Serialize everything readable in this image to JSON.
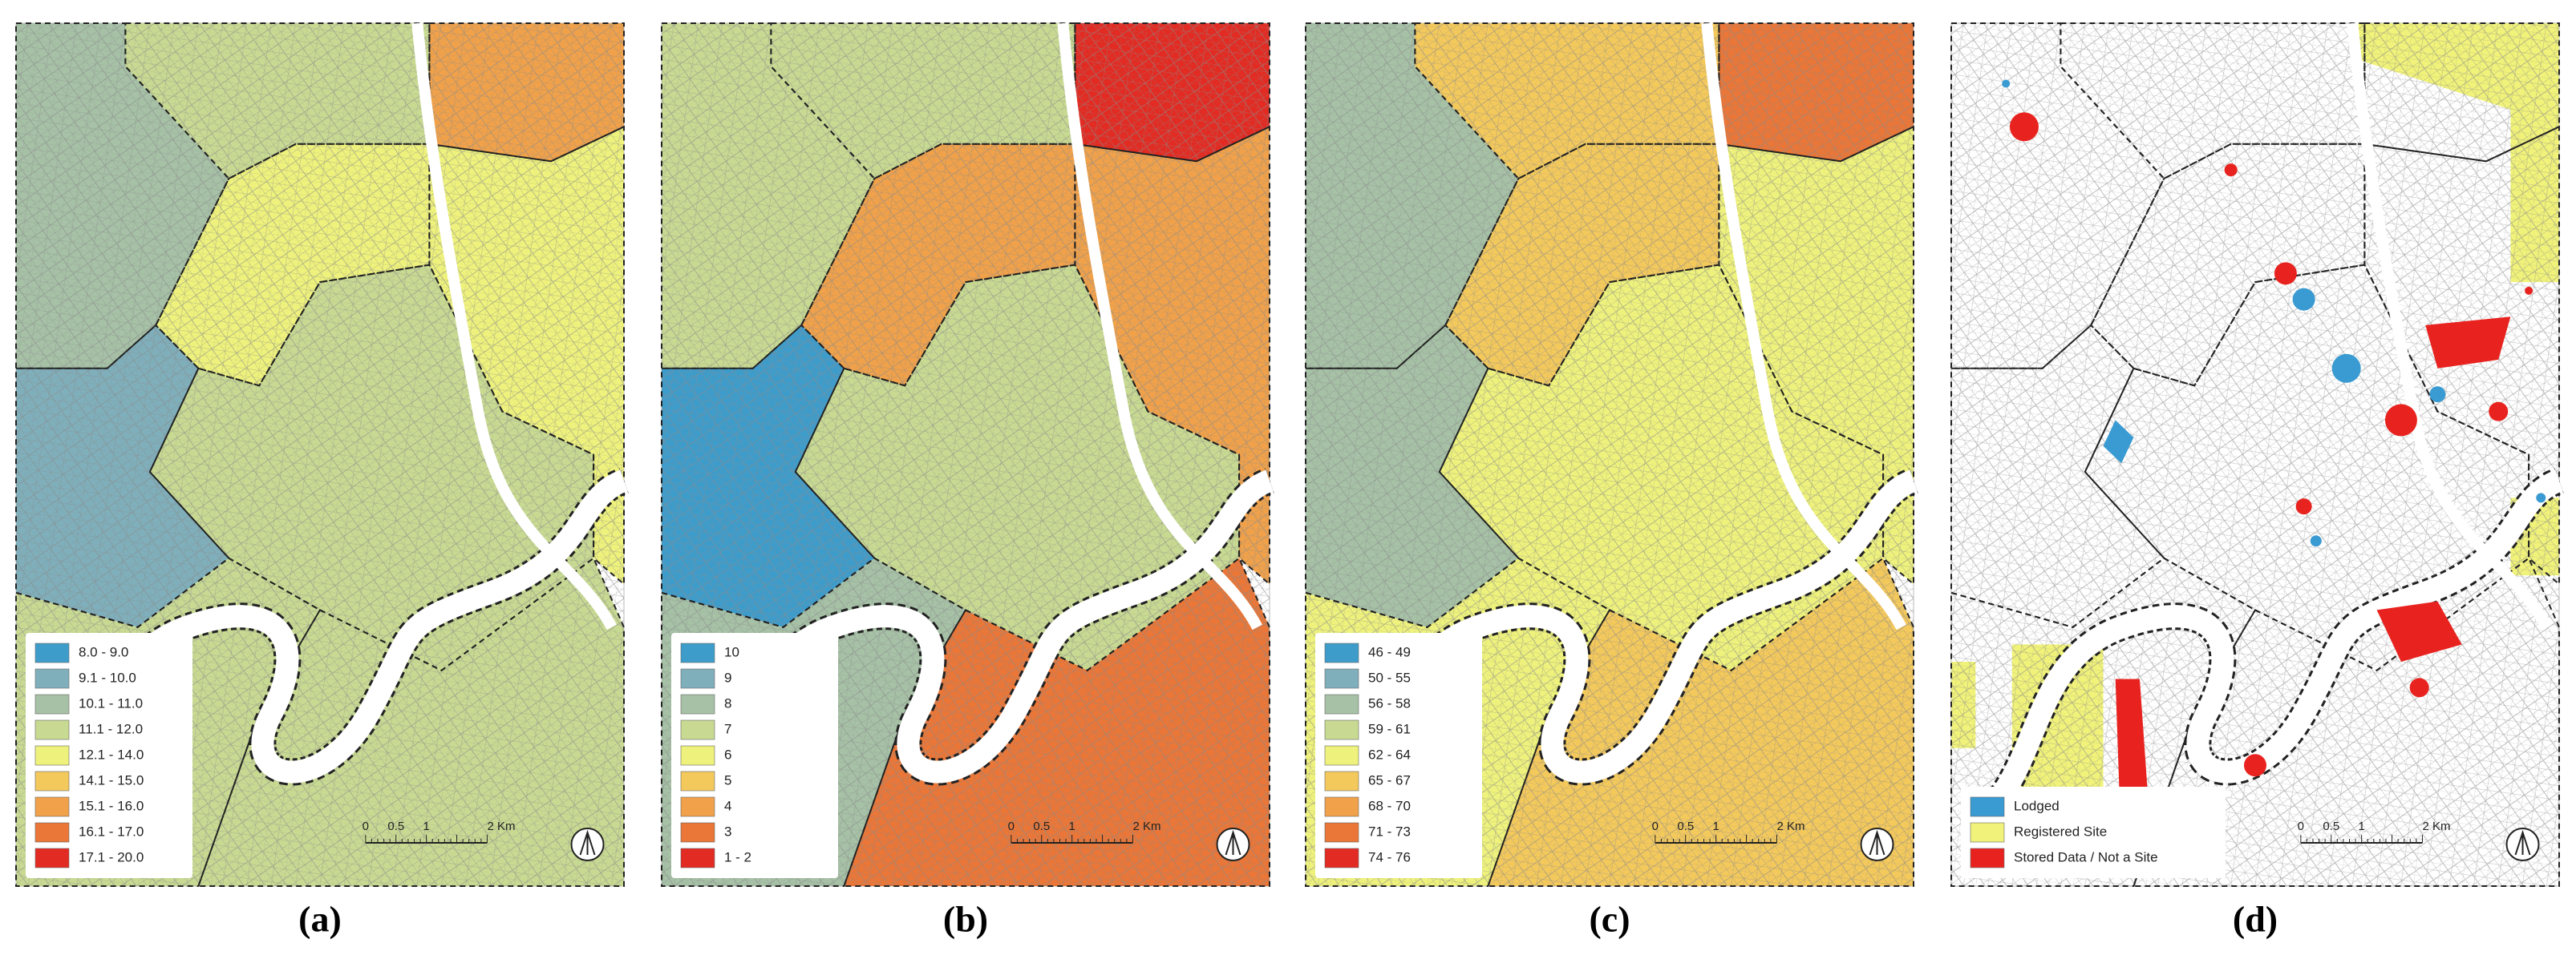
{
  "panels": [
    {
      "label": "(a)",
      "legend": [
        {
          "label": "8.0 - 9.0",
          "color": "#3e9ccb"
        },
        {
          "label": "9.1 - 10.0",
          "color": "#7fafbb"
        },
        {
          "label": "10.1 - 11.0",
          "color": "#a6c1a6"
        },
        {
          "label": "11.1 - 12.0",
          "color": "#c8da92"
        },
        {
          "label": "12.1 - 14.0",
          "color": "#eef27c"
        },
        {
          "label": "14.1 - 15.0",
          "color": "#f4c95c"
        },
        {
          "label": "15.1 - 16.0",
          "color": "#f0a14a"
        },
        {
          "label": "16.1 - 17.0",
          "color": "#ea7637"
        },
        {
          "label": "17.1 - 20.0",
          "color": "#e22b22"
        }
      ],
      "scale": [
        "0",
        "0.5",
        "1",
        "2 Km"
      ]
    },
    {
      "label": "(b)",
      "legend": [
        {
          "label": "10",
          "color": "#3e9ccb"
        },
        {
          "label": "9",
          "color": "#7fafbb"
        },
        {
          "label": "8",
          "color": "#a6c1a6"
        },
        {
          "label": "7",
          "color": "#c8da92"
        },
        {
          "label": "6",
          "color": "#eef27c"
        },
        {
          "label": "5",
          "color": "#f4c95c"
        },
        {
          "label": "4",
          "color": "#f0a14a"
        },
        {
          "label": "3",
          "color": "#ea7637"
        },
        {
          "label": "1 - 2",
          "color": "#e22b22"
        }
      ],
      "scale": [
        "0",
        "0.5",
        "1",
        "2 Km"
      ]
    },
    {
      "label": "(c)",
      "legend": [
        {
          "label": "46 - 49",
          "color": "#3e9ccb"
        },
        {
          "label": "50 - 55",
          "color": "#7fafbb"
        },
        {
          "label": "56 - 58",
          "color": "#a6c1a6"
        },
        {
          "label": "59 - 61",
          "color": "#c8da92"
        },
        {
          "label": "62 - 64",
          "color": "#eef27c"
        },
        {
          "label": "65 - 67",
          "color": "#f4c95c"
        },
        {
          "label": "68 - 70",
          "color": "#f0a14a"
        },
        {
          "label": "71 - 73",
          "color": "#ea7637"
        },
        {
          "label": "74 - 76",
          "color": "#e22b22"
        }
      ],
      "scale": [
        "0",
        "0.5",
        "1",
        "2 Km"
      ]
    },
    {
      "label": "(d)",
      "legend": [
        {
          "label": "Lodged",
          "color": "#3a9bd2"
        },
        {
          "label": "Registered Site",
          "color": "#f0f27a"
        },
        {
          "label": "Stored Data / Not a Site",
          "color": "#e8231f"
        }
      ],
      "scale": [
        "0",
        "0.5",
        "1",
        "2 Km"
      ]
    }
  ]
}
